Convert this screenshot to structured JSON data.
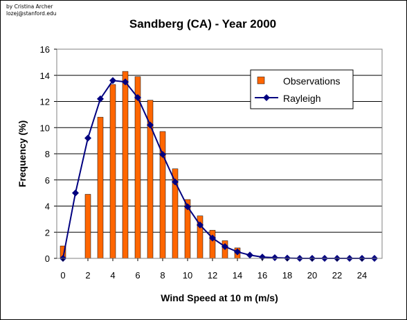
{
  "credit": {
    "line1": "by Cristina Archer",
    "line2": "lozej@stanford.edu"
  },
  "chart_data": {
    "type": "bar",
    "title": "Sandberg (CA) - Year 2000",
    "xlabel": "Wind Speed at 10 m (m/s)",
    "ylabel": "Frequency (%)",
    "xlim": [
      0,
      25
    ],
    "ylim": [
      0,
      16
    ],
    "x_ticks": [
      0,
      2,
      4,
      6,
      8,
      10,
      12,
      14,
      16,
      18,
      20,
      22,
      24
    ],
    "y_ticks": [
      0,
      2,
      4,
      6,
      8,
      10,
      12,
      14,
      16
    ],
    "grid": "horizontal",
    "legend_position": "top-right",
    "series": [
      {
        "name": "Observations",
        "type": "bar",
        "color": "#ff6600",
        "x": [
          0,
          2,
          3,
          4,
          5,
          6,
          7,
          8,
          9,
          10,
          11,
          12,
          13,
          14
        ],
        "values": [
          0.95,
          4.9,
          10.8,
          13.3,
          14.3,
          13.9,
          12.1,
          9.7,
          6.85,
          4.5,
          3.25,
          2.15,
          1.35,
          0.8
        ]
      },
      {
        "name": "Rayleigh",
        "type": "line",
        "color": "#000080",
        "marker": "diamond",
        "x": [
          0,
          1,
          2,
          3,
          4,
          5,
          6,
          7,
          8,
          9,
          10,
          11,
          12,
          13,
          14,
          15,
          16,
          17,
          18,
          19,
          20,
          21,
          22,
          23,
          24,
          25
        ],
        "values": [
          0,
          5.0,
          9.2,
          12.2,
          13.6,
          13.5,
          12.3,
          10.2,
          7.95,
          5.85,
          3.95,
          2.55,
          1.55,
          0.9,
          0.5,
          0.25,
          0.1,
          0.05,
          0.02,
          0,
          0,
          0,
          0,
          0,
          0,
          0
        ]
      }
    ]
  }
}
